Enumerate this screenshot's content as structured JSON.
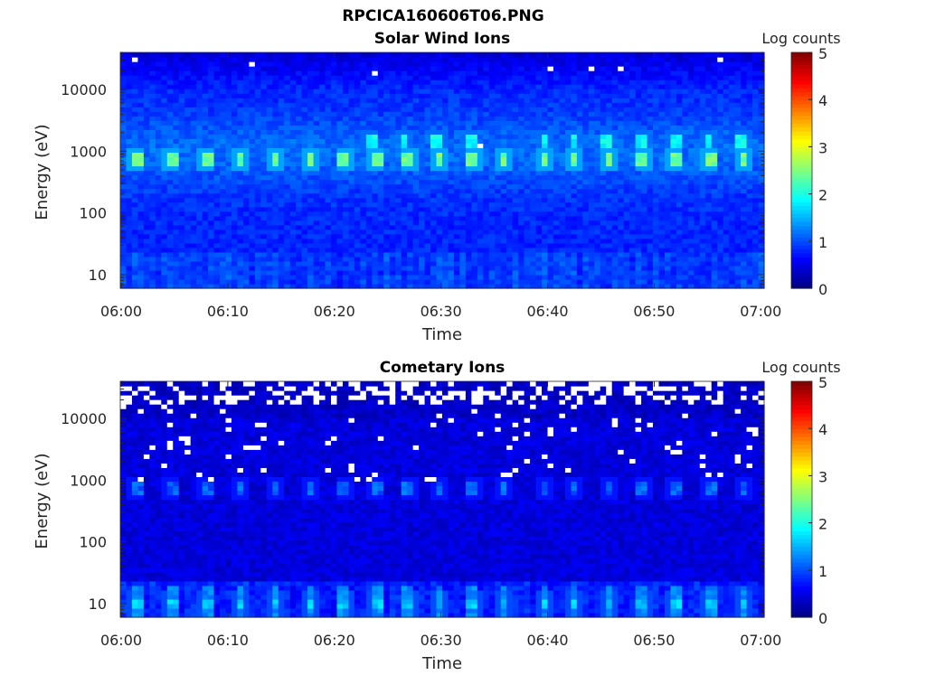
{
  "figure_title": "RPCICA160606T06.PNG",
  "chart_data": [
    {
      "type": "heatmap",
      "title": "Solar Wind Ions",
      "xlabel": "Time",
      "ylabel": "Energy (eV)",
      "xticks": [
        "06:00",
        "06:10",
        "06:20",
        "06:30",
        "06:40",
        "06:50",
        "07:00"
      ],
      "xlim_minutes": [
        0,
        60.4
      ],
      "yscale": "log",
      "ylim": [
        6,
        40000
      ],
      "yticks": [
        "10",
        "100",
        "1000",
        "10000"
      ],
      "colorbar": {
        "label": "Log counts",
        "range": [
          0,
          5
        ],
        "ticks": [
          "0",
          "1",
          "2",
          "3",
          "4",
          "5"
        ],
        "colormap": "jet"
      },
      "background_log_counts": 0.8,
      "peaks": [
        {
          "energy_eV": 750,
          "log_counts": 2.6,
          "times_min": [
            1.5,
            4.8,
            8.2,
            11.3,
            14.5,
            17.8,
            21,
            24,
            27,
            30,
            33,
            36,
            39.8,
            42.5,
            45.8,
            49,
            52,
            55.3,
            58.5
          ]
        },
        {
          "energy_eV": 1500,
          "log_counts": 2.1,
          "times_min": [
            23.5,
            26.6,
            29.7,
            32.8,
            39.9,
            42.6,
            45.7,
            48.9,
            52,
            55.2,
            58.3
          ]
        }
      ],
      "no_data_fraction_high_energy": 0.005
    },
    {
      "type": "heatmap",
      "title": "Cometary Ions",
      "xlabel": "Time",
      "ylabel": "Energy (eV)",
      "xticks": [
        "06:00",
        "06:10",
        "06:20",
        "06:30",
        "06:40",
        "06:50",
        "07:00"
      ],
      "xlim_minutes": [
        0,
        60.4
      ],
      "yscale": "log",
      "ylim": [
        6,
        40000
      ],
      "yticks": [
        "10",
        "100",
        "1000",
        "10000"
      ],
      "colorbar": {
        "label": "Log counts",
        "range": [
          0,
          5
        ],
        "ticks": [
          "0",
          "1",
          "2",
          "3",
          "4",
          "5"
        ],
        "colormap": "jet"
      },
      "background_log_counts": 0.45,
      "peaks": [
        {
          "energy_eV": 750,
          "log_counts": 1.3,
          "times_min": [
            1.5,
            4.8,
            8.2,
            11.3,
            14.5,
            17.8,
            21,
            24,
            27,
            30,
            33,
            36,
            39.8,
            42.5,
            45.8,
            49,
            52,
            55.3,
            58.5
          ]
        },
        {
          "energy_eV": 10,
          "log_counts": 1.8,
          "times_min": [
            1.5,
            4.8,
            8.2,
            11.3,
            14.5,
            17.8,
            21,
            24,
            27,
            30,
            33,
            36,
            39.8,
            42.5,
            45.8,
            49,
            52,
            55.3,
            58.5
          ]
        }
      ],
      "no_data_fraction_high_energy": 0.35
    }
  ]
}
